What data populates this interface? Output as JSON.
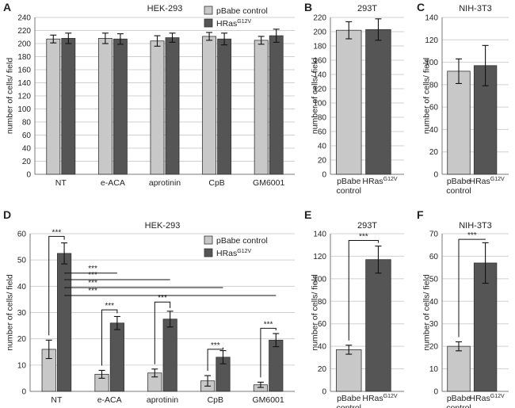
{
  "colors": {
    "light": "#c8c8c8",
    "dark": "#555555",
    "grid": "#d0d0d0",
    "axis": "#7a7a7a"
  },
  "legend": {
    "series1": "pBabe control",
    "series2_base": "HRas",
    "series2_sup": "G12V"
  },
  "sig_marker": "***",
  "chart_data": [
    {
      "panel": "A",
      "type": "bar",
      "title": "HEK-293",
      "ylabel": "number of cells/ field",
      "ylim": [
        0,
        240
      ],
      "ystep": 20,
      "categories": [
        "NT",
        "e-ACA",
        "aprotinin",
        "CpB",
        "GM6001"
      ],
      "series": [
        {
          "name": "pBabe control",
          "values": [
            207,
            208,
            204,
            211,
            205
          ],
          "errors": [
            6,
            8,
            8,
            6,
            6
          ]
        },
        {
          "name": "HRas G12V",
          "values": [
            208,
            207,
            209,
            207,
            212
          ],
          "errors": [
            8,
            8,
            7,
            9,
            10
          ]
        }
      ],
      "legend": "top-right",
      "significance": []
    },
    {
      "panel": "B",
      "type": "bar",
      "title": "293T",
      "ylabel": "number of cells/ field",
      "ylim": [
        0,
        220
      ],
      "ystep": 20,
      "categories": [
        "pBabe control",
        "HRas G12V"
      ],
      "values": [
        202,
        203
      ],
      "errors": [
        12,
        15
      ],
      "significance": []
    },
    {
      "panel": "C",
      "type": "bar",
      "title": "NIH-3T3",
      "ylabel": "number of cells/ field",
      "ylim": [
        0,
        140
      ],
      "ystep": 20,
      "categories": [
        "pBabe control",
        "HRas G12V"
      ],
      "values": [
        92,
        97
      ],
      "errors": [
        11,
        18
      ],
      "significance": []
    },
    {
      "panel": "D",
      "type": "bar",
      "title": "HEK-293",
      "ylabel": "number of cells/ field",
      "ylim": [
        0,
        60
      ],
      "ystep": 10,
      "categories": [
        "NT",
        "e-ACA",
        "aprotinin",
        "CpB",
        "GM6001"
      ],
      "series": [
        {
          "name": "pBabe control",
          "values": [
            16,
            6.5,
            7,
            4,
            2.5
          ],
          "errors": [
            3.5,
            1.5,
            1.5,
            2,
            1
          ]
        },
        {
          "name": "HRas G12V",
          "values": [
            52.5,
            26,
            27.5,
            13,
            19.5
          ],
          "errors": [
            4,
            2.5,
            3,
            2.5,
            2.5
          ]
        }
      ],
      "legend": "right",
      "significance": [
        {
          "label": "***",
          "type": "within",
          "group": 0,
          "y": 59
        },
        {
          "label": "***",
          "type": "within",
          "group": 1,
          "y": 31
        },
        {
          "label": "***",
          "type": "within",
          "group": 2,
          "y": 34
        },
        {
          "label": "***",
          "type": "within",
          "group": 3,
          "y": 16
        },
        {
          "label": "***",
          "type": "within",
          "group": 4,
          "y": 24
        },
        {
          "label": "***",
          "type": "across",
          "to_group": 1,
          "y": 45
        },
        {
          "label": "***",
          "type": "across",
          "to_group": 2,
          "y": 42.5
        },
        {
          "label": "***",
          "type": "across",
          "to_group": 3,
          "y": 39.5
        },
        {
          "label": "***",
          "type": "across",
          "to_group": 4,
          "y": 36.5
        }
      ]
    },
    {
      "panel": "E",
      "type": "bar",
      "title": "293T",
      "ylabel": "number of cells/ field",
      "ylim": [
        0,
        140
      ],
      "ystep": 20,
      "categories": [
        "pBabe control",
        "HRas G12V"
      ],
      "values": [
        37,
        117
      ],
      "errors": [
        4,
        12
      ],
      "significance": [
        {
          "label": "***",
          "type": "pair",
          "y": 134
        }
      ]
    },
    {
      "panel": "F",
      "type": "bar",
      "title": "NIH-3T3",
      "ylabel": "number of cells/ field",
      "ylim": [
        0,
        70
      ],
      "ystep": 10,
      "categories": [
        "pBabe control",
        "HRas G12V"
      ],
      "values": [
        20,
        57
      ],
      "errors": [
        2,
        9
      ],
      "significance": [
        {
          "label": "***",
          "type": "pair",
          "y": 67.5
        }
      ]
    }
  ]
}
